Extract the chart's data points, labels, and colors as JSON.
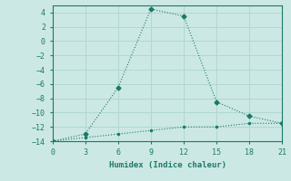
{
  "xlabel": "Humidex (Indice chaleur)",
  "bg_color": "#cce8e4",
  "grid_color": "#b0d8d0",
  "line_color": "#1a7a6a",
  "line1_x": [
    0,
    3,
    6,
    9,
    12,
    15,
    18,
    21
  ],
  "line1_y": [
    -14,
    -13,
    -6.5,
    4.5,
    3.5,
    -8.5,
    -10.5,
    -11.5
  ],
  "line2_x": [
    0,
    3,
    6,
    9,
    12,
    15,
    18,
    21
  ],
  "line2_y": [
    -14,
    -13.5,
    -13.0,
    -12.5,
    -12.0,
    -12.0,
    -11.5,
    -11.5
  ],
  "xlim": [
    0,
    21
  ],
  "ylim": [
    -14,
    5
  ],
  "xticks": [
    0,
    3,
    6,
    9,
    12,
    15,
    18,
    21
  ],
  "yticks": [
    -14,
    -12,
    -10,
    -8,
    -6,
    -4,
    -2,
    0,
    2,
    4
  ]
}
